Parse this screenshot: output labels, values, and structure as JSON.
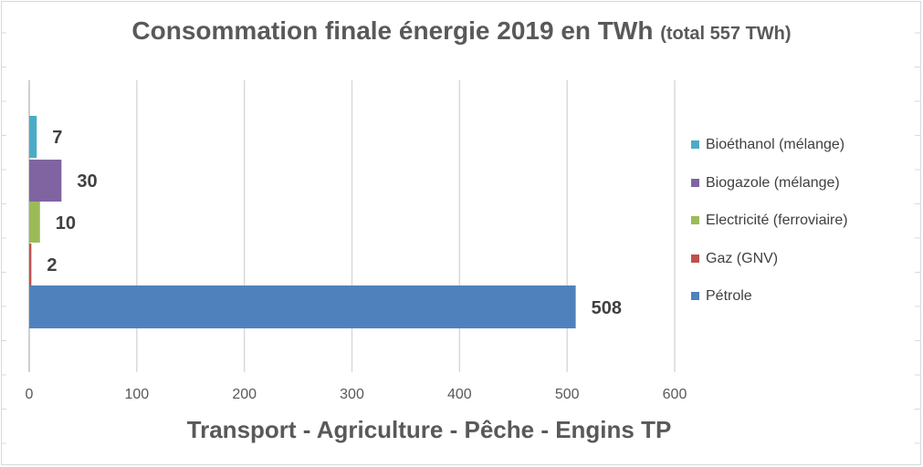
{
  "chart_data": {
    "type": "bar",
    "orientation": "horizontal",
    "title": "Consommation finale énergie 2019 en TWh",
    "subtitle": "(total 557 TWh)",
    "xlabel": "Transport - Agriculture - Pêche - Engins TP",
    "ylabel": "",
    "xlim": [
      0,
      600
    ],
    "xticks": [
      0,
      100,
      200,
      300,
      400,
      500,
      600
    ],
    "grid": true,
    "legend_position": "right",
    "series": [
      {
        "name": "Bioéthanol (mélange)",
        "value": 7,
        "color": "#4bacc6"
      },
      {
        "name": "Biogazole (mélange)",
        "value": 30,
        "color": "#8064a2"
      },
      {
        "name": "Electricité (ferroviaire)",
        "value": 10,
        "color": "#9bbb59"
      },
      {
        "name": "Gaz (GNV)",
        "value": 2,
        "color": "#c0504d"
      },
      {
        "name": "Pétrole",
        "value": 508,
        "color": "#4f81bd"
      }
    ]
  }
}
